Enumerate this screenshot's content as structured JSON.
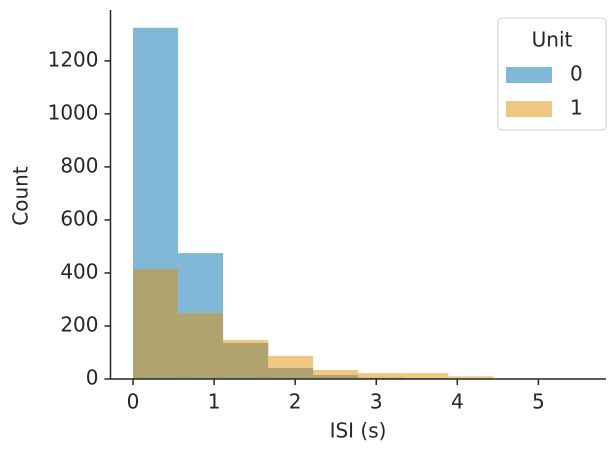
{
  "chart_data": {
    "type": "histogram",
    "xlabel": "ISI (s)",
    "ylabel": "Count",
    "bins": [
      0,
      0.556,
      1.111,
      1.667,
      2.222,
      2.778,
      3.333,
      3.889,
      4.444,
      5,
      5.556
    ],
    "series": [
      {
        "name": "0",
        "color": "#0173b2",
        "values": [
          1325,
          475,
          136,
          41,
          15,
          5,
          3,
          2,
          1,
          1
        ]
      },
      {
        "name": "1",
        "color": "#de8f05",
        "values": [
          415,
          249,
          147,
          87,
          34,
          22,
          22,
          10,
          0,
          0
        ]
      }
    ],
    "legend_title": "Unit",
    "legend": "upper right",
    "xlim": [
      -0.278,
      5.834
    ],
    "ylim": [
      0,
      1392
    ],
    "xticks": [
      0,
      1,
      2,
      3,
      4,
      5
    ],
    "yticks": [
      0,
      200,
      400,
      600,
      800,
      1000,
      1200
    ],
    "opacity": 0.5
  }
}
